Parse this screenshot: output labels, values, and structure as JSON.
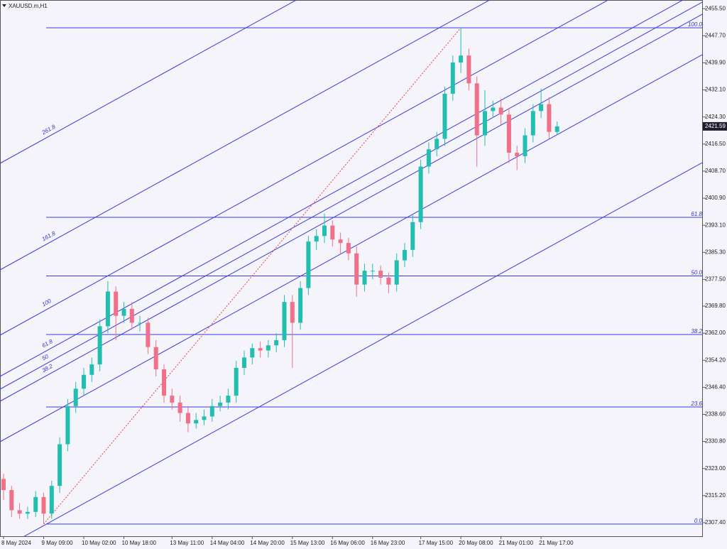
{
  "chart_data": {
    "type": "candlestick",
    "title": "XAUUSD.m,H1",
    "up_color": "#22bfb0",
    "down_color": "#f0708a",
    "line_color": "#3a3ae0",
    "categories": [
      "8 May 2024",
      null,
      null,
      null,
      null,
      "9 May 09:00",
      null,
      null,
      null,
      null,
      "10 May 02:00",
      null,
      null,
      null,
      null,
      "10 May 18:00",
      null,
      null,
      null,
      null,
      null,
      "13 May 11:00",
      null,
      null,
      null,
      null,
      "14 May 04:00",
      null,
      null,
      null,
      null,
      "14 May 20:00",
      null,
      null,
      null,
      null,
      "15 May 13:00",
      null,
      null,
      null,
      null,
      "16 May 06:00",
      null,
      null,
      null,
      null,
      "16 May 23:00",
      null,
      null,
      null,
      null,
      null,
      "17 May 15:00",
      null,
      null,
      null,
      null,
      "20 May 08:00",
      null,
      null,
      null,
      null,
      "21 May 01:00",
      null,
      null,
      null,
      null,
      "21 May 17:00",
      null,
      null
    ],
    "open": [
      2320,
      2316.8,
      2311,
      2310,
      2310.5,
      2314.8,
      2310,
      2318,
      2330,
      2341,
      2346,
      2350,
      2353,
      2364,
      2374,
      2367,
      2369,
      2365,
      2365,
      2358,
      2351.6,
      2344,
      2342,
      2339,
      2336,
      2337,
      2338,
      2341,
      2342,
      2344,
      2352,
      2355,
      2357.7,
      2357,
      2358.5,
      2360,
      2371,
      2365,
      2375,
      2388.4,
      2390,
      2393,
      2389,
      2388,
      2385,
      2376,
      2380,
      2380,
      2378,
      2376,
      2383,
      2386,
      2394,
      2410,
      2415,
      2418,
      2431,
      2440,
      2442,
      2434,
      2419,
      2426,
      2427,
      2425,
      2414,
      2413,
      2419,
      2426,
      2428,
      2420
    ],
    "high": [
      2321.5,
      2318,
      2313,
      2312,
      2316.5,
      2316,
      2319.5,
      2332,
      2343,
      2348,
      2352,
      2355,
      2366,
      2377,
      2375.5,
      2371,
      2371,
      2367,
      2366.5,
      2360,
      2353,
      2346,
      2344,
      2341,
      2339,
      2340,
      2343,
      2344,
      2346,
      2354,
      2357,
      2359,
      2359.5,
      2360,
      2362,
      2373,
      2373,
      2377,
      2390,
      2392,
      2396.5,
      2394.5,
      2391,
      2389.5,
      2387,
      2382,
      2382,
      2381.5,
      2379.5,
      2385,
      2388,
      2396,
      2412,
      2417,
      2420,
      2433,
      2442,
      2450,
      2444,
      2436,
      2432,
      2429,
      2429.5,
      2427,
      2416,
      2421,
      2428,
      2432.5,
      2430,
      2423
    ],
    "low": [
      2314,
      2309,
      2308.5,
      2308.5,
      2309,
      2307,
      2308.5,
      2316,
      2328,
      2339,
      2344,
      2348,
      2351,
      2362,
      2360,
      2365,
      2363,
      2362.5,
      2356,
      2349.5,
      2342,
      2340,
      2336.5,
      2333.5,
      2334.5,
      2335.5,
      2336.5,
      2339.5,
      2340,
      2342,
      2350,
      2353,
      2355,
      2355,
      2356.5,
      2358,
      2352,
      2363,
      2373,
      2386,
      2388,
      2387,
      2385,
      2383,
      2372.5,
      2374,
      2377.5,
      2376,
      2373.5,
      2374,
      2381,
      2384,
      2392,
      2408,
      2413,
      2416,
      2429,
      2437,
      2432,
      2410,
      2416,
      2424,
      2422,
      2411,
      2409,
      2411,
      2417,
      2424,
      2418,
      2419
    ],
    "close": [
      2316.8,
      2311,
      2310,
      2310.5,
      2314.8,
      2310,
      2318,
      2330,
      2341,
      2346,
      2350,
      2353,
      2364,
      2374,
      2367,
      2369,
      2365,
      2365,
      2358,
      2351.6,
      2344,
      2342,
      2339,
      2336,
      2337,
      2338,
      2341,
      2342,
      2344,
      2352,
      2355,
      2357.7,
      2357,
      2358.5,
      2360,
      2371,
      2365,
      2375,
      2388.4,
      2390,
      2393,
      2389,
      2388,
      2385,
      2376,
      2380,
      2380,
      2378,
      2376,
      2383,
      2386,
      2394,
      2410,
      2415,
      2418,
      2431,
      2440,
      2442,
      2434,
      2419,
      2426,
      2427,
      2425,
      2414,
      2413,
      2419,
      2426,
      2428,
      2420,
      2421.59
    ],
    "ylim": [
      2303.5,
      2458.0
    ],
    "yticks": [
      {
        "value": 2455.5,
        "label": "2455.50"
      },
      {
        "value": 2447.7,
        "label": "2447.70"
      },
      {
        "value": 2439.9,
        "label": "2439.90"
      },
      {
        "value": 2432.1,
        "label": "2432.10"
      },
      {
        "value": 2424.3,
        "label": "2424.30"
      },
      {
        "value": 2416.5,
        "label": "2416.50"
      },
      {
        "value": 2408.7,
        "label": "2408.70"
      },
      {
        "value": 2400.9,
        "label": "2400.90"
      },
      {
        "value": 2393.1,
        "label": "2393.10"
      },
      {
        "value": 2385.3,
        "label": "2385.30"
      },
      {
        "value": 2377.5,
        "label": "2377.50"
      },
      {
        "value": 2369.8,
        "label": "2369.80"
      },
      {
        "value": 2362,
        "label": "2362.00"
      },
      {
        "value": 2354.2,
        "label": "2354.20"
      },
      {
        "value": 2346.4,
        "label": "2346.40"
      },
      {
        "value": 2338.6,
        "label": "2338.60"
      },
      {
        "value": 2330.8,
        "label": "2330.80"
      },
      {
        "value": 2323,
        "label": "2323.00"
      },
      {
        "value": 2315.2,
        "label": "2315.20"
      },
      {
        "value": 2307.4,
        "label": "2307.40"
      }
    ],
    "fib_retracement": {
      "from": 2307.0,
      "to": 2450.0,
      "levels": [
        {
          "value": 100,
          "label": "100.0"
        },
        61.8,
        {
          "value": 50,
          "label": "50.0"
        },
        38.2,
        23.6,
        {
          "value": 0,
          "label": "0.0"
        }
      ]
    },
    "fib_channel": {
      "levels": [
        261.8,
        161.8,
        100,
        61.8,
        50,
        38.2
      ]
    }
  }
}
